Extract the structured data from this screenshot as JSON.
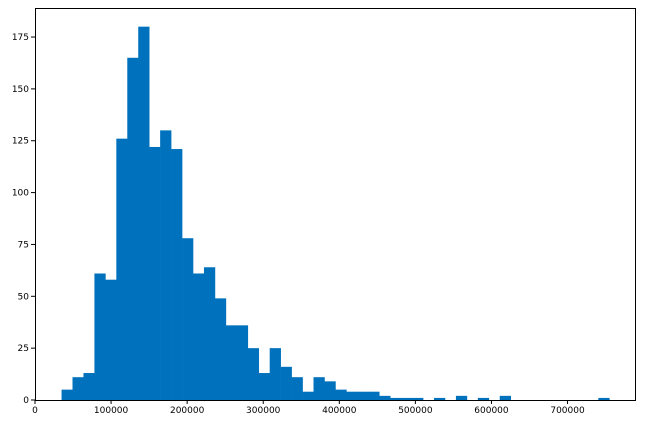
{
  "chart_data": {
    "type": "bar",
    "title": "",
    "xlabel": "",
    "ylabel": "",
    "bin_start": 34900,
    "bin_width": 14400,
    "values": [
      5,
      11,
      13,
      61,
      58,
      126,
      165,
      180,
      122,
      130,
      121,
      78,
      61,
      64,
      49,
      36,
      36,
      25,
      13,
      25,
      16,
      11,
      4,
      11,
      9,
      5,
      4,
      4,
      4,
      2,
      1,
      1,
      1,
      0,
      1,
      0,
      2,
      0,
      1,
      0,
      2,
      0,
      0,
      0,
      0,
      0,
      0,
      0,
      0,
      1
    ],
    "xlim": [
      0,
      790000
    ],
    "ylim": [
      0,
      189
    ],
    "xticks": [
      0,
      100000,
      200000,
      300000,
      400000,
      500000,
      600000,
      700000
    ],
    "xtick_labels": [
      "0",
      "100000",
      "200000",
      "300000",
      "400000",
      "500000",
      "600000",
      "700000"
    ],
    "yticks": [
      0,
      25,
      50,
      75,
      100,
      125,
      150,
      175
    ],
    "ytick_labels": [
      "0",
      "25",
      "50",
      "75",
      "100",
      "125",
      "150",
      "175"
    ],
    "bar_color": "#0072bd",
    "grid": false,
    "legend": "none"
  }
}
